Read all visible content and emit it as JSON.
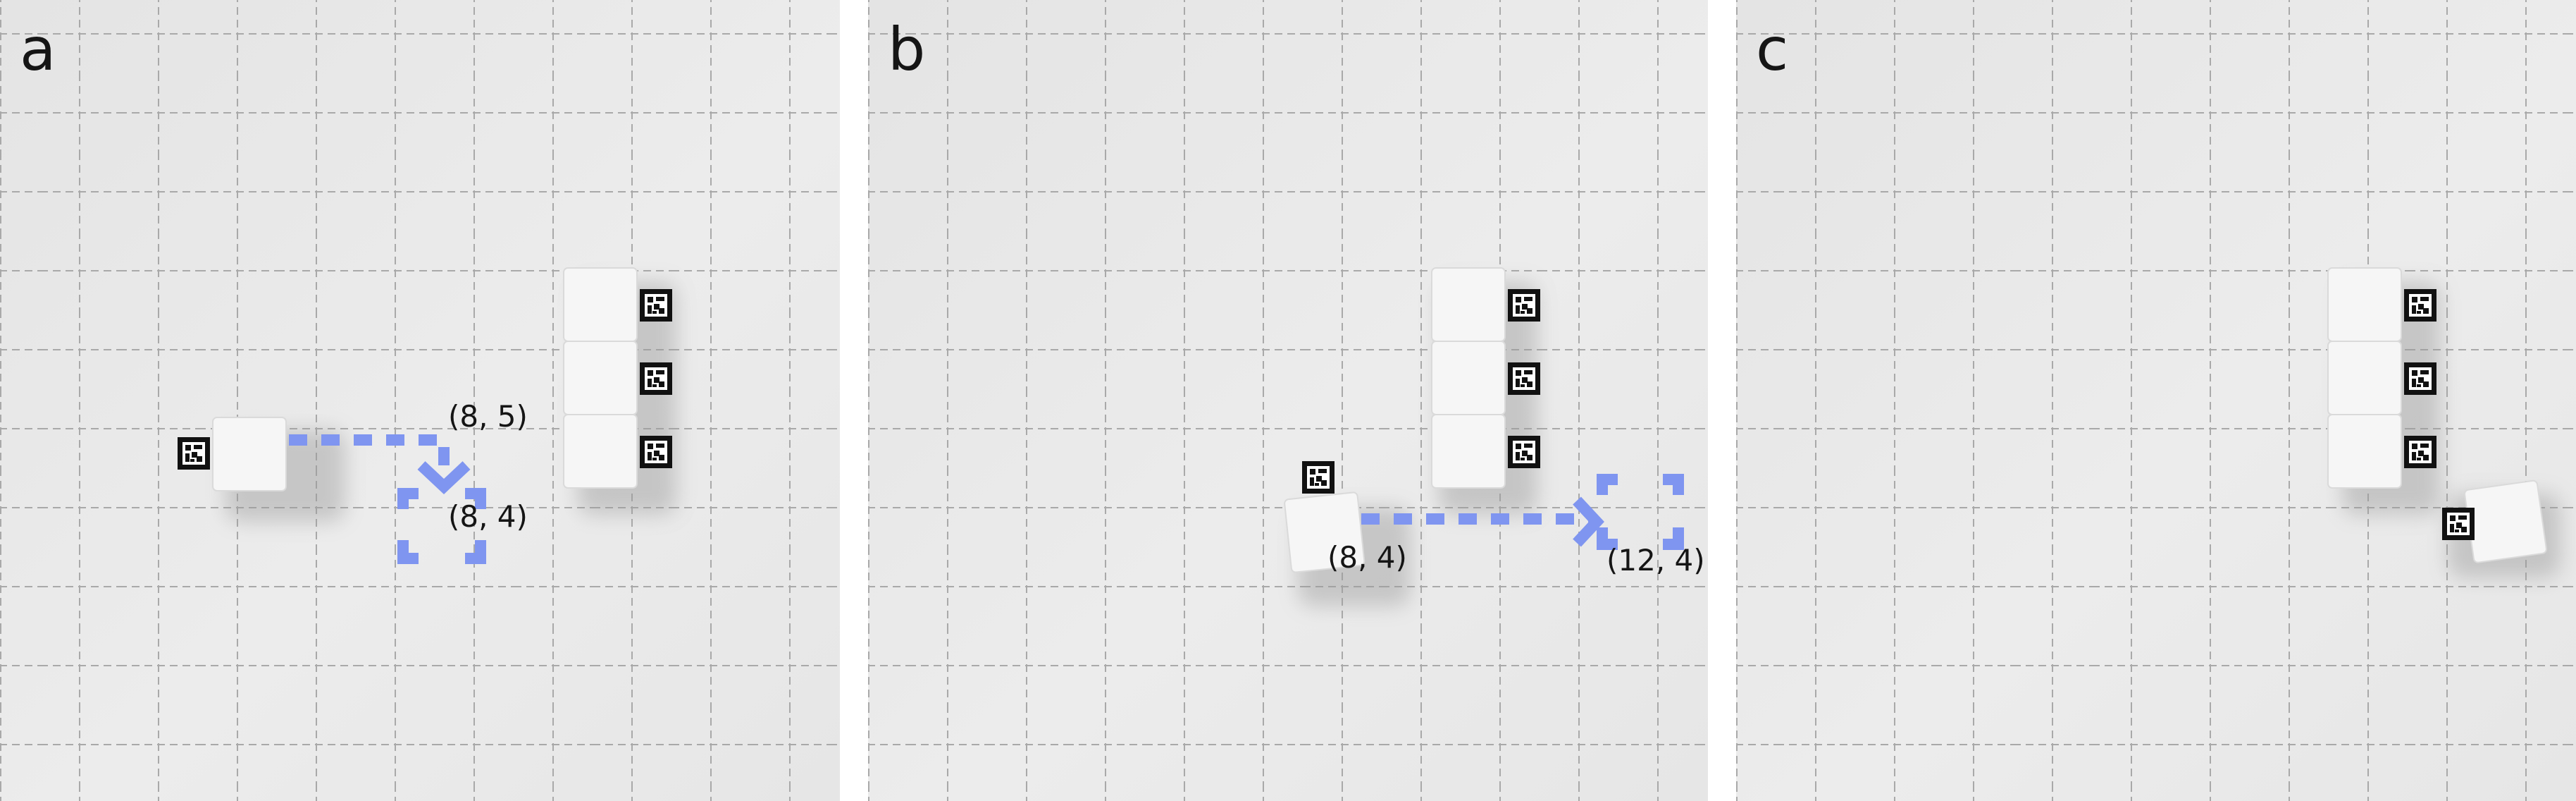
{
  "panels": [
    {
      "label": "a",
      "coords": [
        "(8, 5)",
        "(8, 4)"
      ]
    },
    {
      "label": "b",
      "coords": [
        "(8, 4)",
        "(12, 4)"
      ]
    },
    {
      "label": "c",
      "coords": []
    }
  ],
  "colors": {
    "path": "#7f95f0",
    "grid": "#a9a9a9",
    "background": "#e9e9e9",
    "block": "#f6f6f6"
  },
  "icons": [
    "aruco-marker-icon"
  ]
}
